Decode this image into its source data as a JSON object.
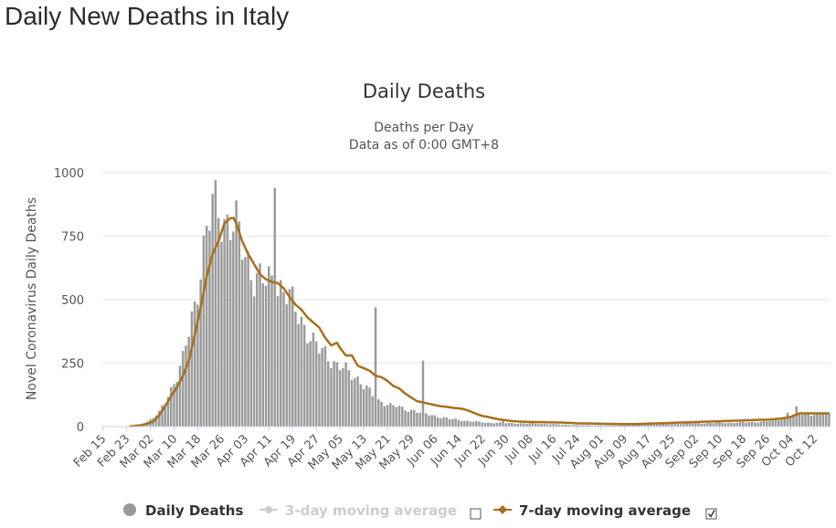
{
  "page": {
    "title": "Daily New Deaths in Italy"
  },
  "chart_data": {
    "type": "bar",
    "title": "Daily Deaths",
    "subtitle_line1": "Deaths per Day",
    "subtitle_line2": "Data as of 0:00 GMT+8",
    "ylabel": "Novel Coronavirus Daily Deaths",
    "xlabel": "",
    "ylim": [
      0,
      1000
    ],
    "yticks": [
      {
        "value": 0,
        "label": "0"
      },
      {
        "value": 250,
        "label": "250"
      },
      {
        "value": 500,
        "label": "500"
      },
      {
        "value": 750,
        "label": "750"
      },
      {
        "value": 1000,
        "label": "1000"
      }
    ],
    "start_date": "2020-02-15",
    "end_date": "2020-10-17",
    "xticks": [
      "Feb 15",
      "Feb 23",
      "Mar 02",
      "Mar 10",
      "Mar 18",
      "Mar 26",
      "Apr 03",
      "Apr 11",
      "Apr 19",
      "Apr 27",
      "May 05",
      "May 13",
      "May 21",
      "May 29",
      "Jun 06",
      "Jun 14",
      "Jun 22",
      "Jun 30",
      "Jul 08",
      "Jul 16",
      "Jul 24",
      "Aug 01",
      "Aug 09",
      "Aug 17",
      "Aug 25",
      "Sep 02",
      "Sep 10",
      "Sep 18",
      "Sep 26",
      "Oct 04",
      "Oct 12"
    ],
    "grid": true,
    "legend_position": "bottom-center",
    "legend": [
      {
        "name": "Daily Deaths",
        "enabled": true
      },
      {
        "name": "3-day moving average",
        "enabled": false,
        "checked": false
      },
      {
        "name": "7-day moving average",
        "enabled": true,
        "checked": true
      }
    ],
    "colors": {
      "bars": "#9a9a9a",
      "ma7": "#a8701a",
      "ma3_disabled": "#cccccc",
      "grid": "#e6e6e6",
      "axis": "#333333"
    },
    "anchors": [
      [
        0,
        0
      ],
      [
        6,
        0
      ],
      [
        7,
        1
      ],
      [
        9,
        2
      ],
      [
        11,
        5
      ],
      [
        13,
        9
      ],
      [
        15,
        20
      ],
      [
        17,
        35
      ],
      [
        19,
        55
      ],
      [
        21,
        100
      ],
      [
        23,
        150
      ],
      [
        25,
        200
      ],
      [
        27,
        260
      ],
      [
        29,
        370
      ],
      [
        31,
        480
      ],
      [
        33,
        640
      ],
      [
        35,
        760
      ],
      [
        37,
        860
      ],
      [
        39,
        850
      ],
      [
        41,
        820
      ],
      [
        43,
        810
      ],
      [
        45,
        780
      ],
      [
        47,
        700
      ],
      [
        49,
        650
      ],
      [
        51,
        600
      ],
      [
        53,
        580
      ],
      [
        55,
        560
      ],
      [
        57,
        570
      ],
      [
        59,
        560
      ],
      [
        61,
        540
      ],
      [
        63,
        500
      ],
      [
        65,
        460
      ],
      [
        67,
        420
      ],
      [
        69,
        380
      ],
      [
        71,
        330
      ],
      [
        73,
        300
      ],
      [
        75,
        290
      ],
      [
        77,
        270
      ],
      [
        79,
        240
      ],
      [
        81,
        230
      ],
      [
        83,
        210
      ],
      [
        85,
        200
      ],
      [
        87,
        180
      ],
      [
        89,
        150
      ],
      [
        91,
        120
      ],
      [
        93,
        100
      ],
      [
        95,
        95
      ],
      [
        97,
        85
      ],
      [
        99,
        80
      ],
      [
        101,
        70
      ],
      [
        103,
        65
      ],
      [
        105,
        65
      ],
      [
        107,
        55
      ],
      [
        109,
        50
      ],
      [
        111,
        45
      ],
      [
        113,
        40
      ],
      [
        115,
        35
      ],
      [
        117,
        30
      ],
      [
        119,
        28
      ],
      [
        121,
        25
      ],
      [
        123,
        22
      ],
      [
        125,
        20
      ],
      [
        127,
        18
      ],
      [
        129,
        16
      ],
      [
        131,
        15
      ],
      [
        135,
        14
      ],
      [
        140,
        13
      ],
      [
        145,
        12
      ],
      [
        150,
        10
      ],
      [
        155,
        8
      ],
      [
        160,
        6
      ],
      [
        165,
        5
      ],
      [
        170,
        5
      ],
      [
        175,
        6
      ],
      [
        180,
        7
      ],
      [
        185,
        9
      ],
      [
        190,
        10
      ],
      [
        195,
        12
      ],
      [
        200,
        13
      ],
      [
        205,
        14
      ],
      [
        210,
        15
      ],
      [
        215,
        16
      ],
      [
        220,
        18
      ],
      [
        225,
        22
      ],
      [
        229,
        30
      ],
      [
        233,
        45
      ],
      [
        235,
        50
      ]
    ],
    "ma7_anchors": [
      [
        0,
        0
      ],
      [
        6,
        0
      ],
      [
        10,
        2
      ],
      [
        13,
        6
      ],
      [
        15,
        12
      ],
      [
        17,
        20
      ],
      [
        19,
        45
      ],
      [
        21,
        80
      ],
      [
        23,
        120
      ],
      [
        25,
        155
      ],
      [
        27,
        200
      ],
      [
        29,
        260
      ],
      [
        31,
        360
      ],
      [
        33,
        470
      ],
      [
        35,
        590
      ],
      [
        37,
        680
      ],
      [
        39,
        730
      ],
      [
        41,
        800
      ],
      [
        43,
        820
      ],
      [
        44,
        822
      ],
      [
        45,
        800
      ],
      [
        47,
        730
      ],
      [
        49,
        680
      ],
      [
        51,
        640
      ],
      [
        53,
        600
      ],
      [
        55,
        580
      ],
      [
        57,
        570
      ],
      [
        59,
        565
      ],
      [
        61,
        545
      ],
      [
        63,
        510
      ],
      [
        65,
        480
      ],
      [
        67,
        460
      ],
      [
        69,
        430
      ],
      [
        71,
        410
      ],
      [
        73,
        390
      ],
      [
        75,
        350
      ],
      [
        77,
        320
      ],
      [
        79,
        330
      ],
      [
        80,
        310
      ],
      [
        82,
        280
      ],
      [
        84,
        280
      ],
      [
        86,
        240
      ],
      [
        88,
        230
      ],
      [
        90,
        220
      ],
      [
        92,
        200
      ],
      [
        94,
        195
      ],
      [
        96,
        180
      ],
      [
        98,
        160
      ],
      [
        100,
        150
      ],
      [
        102,
        130
      ],
      [
        104,
        115
      ],
      [
        106,
        100
      ],
      [
        108,
        95
      ],
      [
        110,
        90
      ],
      [
        112,
        85
      ],
      [
        114,
        80
      ],
      [
        116,
        78
      ],
      [
        118,
        74
      ],
      [
        120,
        72
      ],
      [
        122,
        68
      ],
      [
        124,
        60
      ],
      [
        126,
        50
      ],
      [
        128,
        42
      ],
      [
        130,
        38
      ],
      [
        132,
        32
      ],
      [
        134,
        28
      ],
      [
        136,
        25
      ],
      [
        138,
        22
      ],
      [
        140,
        20
      ],
      [
        145,
        18
      ],
      [
        150,
        17
      ],
      [
        155,
        16
      ],
      [
        160,
        13
      ],
      [
        165,
        12
      ],
      [
        170,
        11
      ],
      [
        175,
        10
      ],
      [
        180,
        10
      ],
      [
        185,
        12
      ],
      [
        190,
        14
      ],
      [
        195,
        16
      ],
      [
        200,
        18
      ],
      [
        205,
        20
      ],
      [
        210,
        22
      ],
      [
        215,
        24
      ],
      [
        220,
        26
      ],
      [
        225,
        28
      ],
      [
        229,
        32
      ],
      [
        232,
        38
      ],
      [
        235,
        52
      ]
    ],
    "spikes": [
      [
        58,
        940
      ],
      [
        92,
        470
      ],
      [
        108,
        260
      ],
      [
        135,
        30
      ],
      [
        231,
        55
      ],
      [
        234,
        80
      ]
    ]
  }
}
